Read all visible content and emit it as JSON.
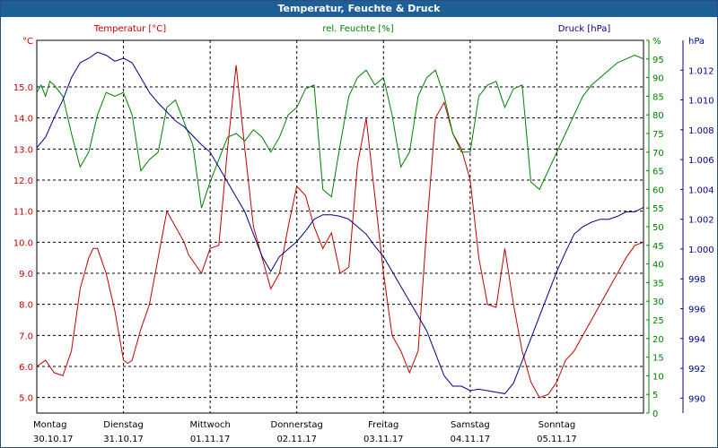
{
  "window": {
    "title": "Temperatur, Feuchte & Druck"
  },
  "chart_data": {
    "type": "line",
    "title": "Temperatur, Feuchte & Druck",
    "x_range": [
      "30.10.17 00:00",
      "05.11.17 24:00"
    ],
    "x_ticks": [
      {
        "day": "Montag",
        "date": "30.10.17"
      },
      {
        "day": "Dienstag",
        "date": "31.10.17"
      },
      {
        "day": "Mittwoch",
        "date": "01.11.17"
      },
      {
        "day": "Donnerstag",
        "date": "02.11.17"
      },
      {
        "day": "Freitag",
        "date": "03.11.17"
      },
      {
        "day": "Samstag",
        "date": "04.11.17"
      },
      {
        "day": "Sonntag",
        "date": "05.11.17"
      }
    ],
    "axes": {
      "temperature": {
        "label": "Temperatur [°C]",
        "unit": "°C",
        "color": "#c00000",
        "range": [
          4.5,
          16.5
        ],
        "ticks": [
          "5.0",
          "6.0",
          "7.0",
          "8.0",
          "9.0",
          "10.0",
          "11.0",
          "12.0",
          "13.0",
          "14.0",
          "15.0"
        ]
      },
      "humidity": {
        "label": "rel. Feuchte [%]",
        "unit": "%",
        "color": "#008000",
        "range": [
          0,
          100
        ],
        "ticks": [
          "0",
          "5",
          "10",
          "15",
          "20",
          "25",
          "30",
          "35",
          "40",
          "45",
          "50",
          "55",
          "60",
          "65",
          "70",
          "75",
          "80",
          "85",
          "90",
          "95",
          "%"
        ]
      },
      "pressure": {
        "label": "Druck [hPa]",
        "unit": "hPa",
        "color": "#00008b",
        "range": [
          989,
          1014
        ],
        "ticks": [
          "990",
          "992",
          "994",
          "996",
          "998",
          "1.000",
          "1.002",
          "1.004",
          "1.006",
          "1.008",
          "1.010",
          "1.012"
        ]
      }
    },
    "grid": true,
    "series": [
      {
        "name": "Temperatur [°C]",
        "axis": "temperature",
        "x": [
          0,
          0.1,
          0.2,
          0.3,
          0.4,
          0.5,
          0.6,
          0.65,
          0.7,
          0.8,
          0.9,
          1.0,
          1.05,
          1.1,
          1.2,
          1.3,
          1.4,
          1.5,
          1.6,
          1.7,
          1.75,
          1.8,
          1.9,
          2.0,
          2.1,
          2.2,
          2.3,
          2.4,
          2.5,
          2.6,
          2.7,
          2.8,
          2.9,
          3.0,
          3.1,
          3.2,
          3.3,
          3.4,
          3.5,
          3.6,
          3.7,
          3.8,
          3.9,
          4.0,
          4.1,
          4.2,
          4.3,
          4.4,
          4.5,
          4.6,
          4.7,
          4.8,
          4.9,
          5.0,
          5.1,
          5.2,
          5.3,
          5.4,
          5.5,
          5.6,
          5.7,
          5.8,
          5.9,
          6.0,
          6.1,
          6.2,
          6.3,
          6.4,
          6.5,
          6.6,
          6.7,
          6.8,
          6.9,
          7.0
        ],
        "values": [
          6.0,
          6.2,
          5.8,
          5.7,
          6.5,
          8.5,
          9.5,
          9.8,
          9.8,
          9.0,
          7.8,
          6.2,
          6.1,
          6.2,
          7.2,
          8.0,
          9.5,
          11.0,
          10.5,
          10.0,
          9.6,
          9.4,
          9.0,
          9.8,
          9.9,
          13.0,
          15.7,
          13.0,
          10.5,
          9.5,
          8.5,
          9.0,
          10.5,
          11.8,
          11.5,
          10.5,
          9.8,
          10.3,
          9.0,
          9.2,
          12.5,
          14.0,
          11.5,
          9.0,
          7.0,
          6.5,
          5.8,
          6.5,
          10.5,
          14.0,
          14.5,
          13.5,
          13.0,
          12.0,
          9.5,
          8.0,
          7.9,
          9.8,
          8.0,
          6.5,
          5.5,
          5.0,
          5.1,
          5.5,
          6.2,
          6.5,
          7.0,
          7.5,
          8.0,
          8.5,
          9.0,
          9.5,
          9.9,
          10.0
        ]
      },
      {
        "name": "rel. Feuchte [%]",
        "axis": "humidity",
        "x": [
          0,
          0.05,
          0.1,
          0.15,
          0.2,
          0.3,
          0.4,
          0.5,
          0.6,
          0.7,
          0.8,
          0.9,
          1.0,
          1.1,
          1.2,
          1.3,
          1.4,
          1.5,
          1.6,
          1.7,
          1.8,
          1.9,
          2.0,
          2.1,
          2.2,
          2.3,
          2.4,
          2.5,
          2.6,
          2.7,
          2.8,
          2.9,
          3.0,
          3.1,
          3.2,
          3.3,
          3.4,
          3.5,
          3.6,
          3.7,
          3.8,
          3.9,
          4.0,
          4.1,
          4.2,
          4.3,
          4.4,
          4.5,
          4.6,
          4.7,
          4.8,
          4.9,
          5.0,
          5.1,
          5.2,
          5.3,
          5.4,
          5.5,
          5.6,
          5.7,
          5.8,
          5.9,
          6.0,
          6.1,
          6.2,
          6.3,
          6.4,
          6.5,
          6.6,
          6.7,
          6.8,
          6.9,
          7.0
        ],
        "values": [
          86,
          88,
          85,
          89,
          88,
          85,
          75,
          66,
          70,
          80,
          86,
          85,
          86,
          80,
          65,
          68,
          70,
          82,
          84,
          78,
          72,
          55,
          62,
          68,
          74,
          75,
          73,
          76,
          74,
          70,
          74,
          80,
          82,
          87,
          88,
          60,
          58,
          72,
          85,
          90,
          92,
          88,
          90,
          80,
          66,
          70,
          85,
          90,
          92,
          85,
          75,
          70,
          70,
          85,
          88,
          89,
          82,
          87,
          88,
          62,
          60,
          65,
          70,
          75,
          80,
          85,
          88,
          90,
          92,
          94,
          95,
          96,
          95
        ]
      },
      {
        "name": "Druck [hPa]",
        "axis": "pressure",
        "x": [
          0,
          0.1,
          0.2,
          0.3,
          0.4,
          0.5,
          0.6,
          0.7,
          0.8,
          0.9,
          1.0,
          1.1,
          1.2,
          1.3,
          1.4,
          1.5,
          1.6,
          1.7,
          1.8,
          1.9,
          2.0,
          2.1,
          2.2,
          2.3,
          2.4,
          2.5,
          2.6,
          2.7,
          2.8,
          2.9,
          3.0,
          3.1,
          3.2,
          3.3,
          3.4,
          3.5,
          3.6,
          3.7,
          3.8,
          3.9,
          4.0,
          4.1,
          4.2,
          4.3,
          4.4,
          4.5,
          4.6,
          4.7,
          4.8,
          4.9,
          5.0,
          5.1,
          5.2,
          5.3,
          5.4,
          5.5,
          5.6,
          5.7,
          5.8,
          5.9,
          6.0,
          6.1,
          6.2,
          6.3,
          6.4,
          6.5,
          6.6,
          6.7,
          6.8,
          6.9,
          7.0
        ],
        "values": [
          1006.8,
          1007.5,
          1008.8,
          1010.0,
          1011.5,
          1012.5,
          1012.8,
          1013.2,
          1013.0,
          1012.6,
          1012.8,
          1012.5,
          1011.5,
          1010.5,
          1009.8,
          1009.2,
          1008.6,
          1008.2,
          1007.6,
          1007.0,
          1006.5,
          1005.5,
          1004.5,
          1003.5,
          1002.5,
          1001.0,
          999.5,
          998.5,
          999.5,
          1000.0,
          1000.5,
          1001.2,
          1002.0,
          1002.3,
          1002.3,
          1002.2,
          1002.0,
          1001.5,
          1001.0,
          1000.2,
          999.5,
          998.5,
          997.5,
          996.5,
          995.5,
          994.5,
          993.0,
          991.5,
          990.8,
          990.8,
          990.5,
          990.6,
          990.5,
          990.4,
          990.3,
          991.0,
          992.5,
          994.0,
          995.5,
          997.0,
          998.5,
          999.8,
          1001.0,
          1001.5,
          1001.8,
          1002.0,
          1002.0,
          1002.2,
          1002.5,
          1002.5,
          1002.8
        ]
      }
    ]
  }
}
